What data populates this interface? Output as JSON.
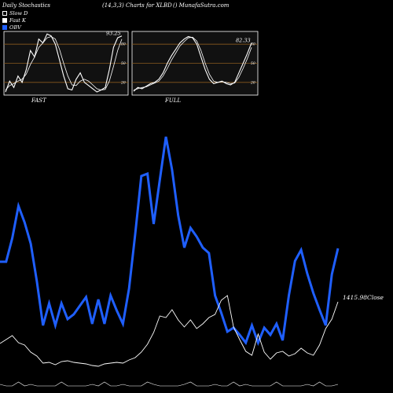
{
  "header": {
    "left": "Daily Stochastics",
    "middle": "(14,3,3) Charts for XLBD",
    "right": "() MunafaSutra.com"
  },
  "legend": [
    {
      "label": "Slow  D",
      "color": "#ffffff"
    },
    {
      "label": "Fast K",
      "color": "#ffffff"
    },
    {
      "label": "OBV",
      "color": "#1f5fff"
    }
  ],
  "colors": {
    "obv": "#1f5fff",
    "price": "#ffffff",
    "band": "#8a5a1f",
    "panel_bg": "#111111"
  },
  "chart_data": [
    {
      "type": "line",
      "panel": "FAST",
      "xlabel": "FAST",
      "ylim": [
        0,
        100
      ],
      "levels": [
        20,
        50,
        80
      ],
      "last_value_label": "93.25",
      "series": [
        {
          "values": [
            5,
            22,
            12,
            30,
            20,
            40,
            70,
            60,
            88,
            82,
            96,
            93,
            80,
            55,
            30,
            10,
            8,
            25,
            35,
            20,
            15,
            10,
            5,
            8,
            12,
            40,
            75,
            90,
            93
          ]
        },
        {
          "values": [
            8,
            15,
            18,
            22,
            25,
            33,
            48,
            60,
            75,
            82,
            90,
            92,
            88,
            72,
            50,
            30,
            16,
            15,
            22,
            25,
            22,
            16,
            10,
            8,
            9,
            22,
            45,
            70,
            88
          ]
        }
      ]
    },
    {
      "type": "line",
      "panel": "FULL",
      "xlabel": "FULL",
      "ylim": [
        0,
        100
      ],
      "levels": [
        20,
        50,
        80
      ],
      "last_value_label": "82.33",
      "series": [
        {
          "values": [
            6,
            12,
            10,
            14,
            18,
            20,
            25,
            35,
            50,
            62,
            72,
            82,
            88,
            92,
            90,
            80,
            60,
            40,
            25,
            18,
            20,
            22,
            18,
            16,
            20,
            35,
            50,
            65,
            82
          ]
        },
        {
          "values": [
            8,
            10,
            12,
            13,
            16,
            19,
            22,
            30,
            42,
            55,
            66,
            77,
            84,
            90,
            91,
            85,
            70,
            50,
            33,
            22,
            20,
            21,
            20,
            18,
            19,
            28,
            42,
            57,
            75
          ]
        }
      ]
    },
    {
      "type": "line",
      "panel": "main",
      "series": [
        {
          "name": "OBV",
          "values": [
            333,
            333,
            303,
            262,
            283,
            310,
            358,
            414,
            386,
            414,
            386,
            406,
            400,
            389,
            378,
            412,
            381,
            412,
            376,
            395,
            412,
            367,
            298,
            224,
            221,
            285,
            229,
            174,
            216,
            274,
            315,
            290,
            301,
            315,
            322,
            376,
            398,
            422,
            417,
            426,
            436,
            414,
            436,
            417,
            426,
            412,
            433,
            376,
            332,
            318,
            348,
            373,
            394,
            414,
            349,
            316
          ]
        },
        {
          "name": "Close",
          "values": [
            437,
            432,
            427,
            436,
            439,
            448,
            453,
            462,
            461,
            464,
            460,
            459,
            461,
            462,
            463,
            465,
            466,
            463,
            462,
            461,
            462,
            458,
            455,
            448,
            438,
            423,
            402,
            404,
            394,
            407,
            416,
            407,
            418,
            412,
            404,
            400,
            382,
            376,
            416,
            432,
            447,
            452,
            425,
            448,
            457,
            449,
            447,
            453,
            450,
            443,
            449,
            452,
            439,
            418,
            406,
            384
          ],
          "last_label": "1415.98Close"
        }
      ]
    }
  ]
}
